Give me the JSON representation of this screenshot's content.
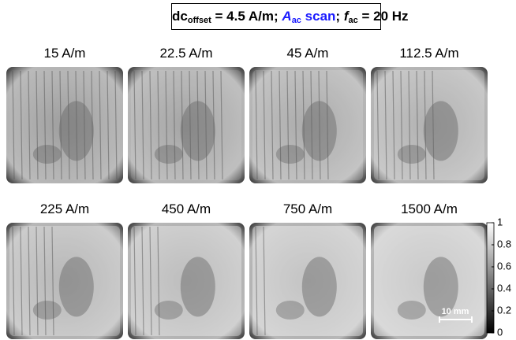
{
  "title": {
    "dc": "dc",
    "dc_sub": "offset",
    "dc_value": " = 4.5 A/m; ",
    "A": "A",
    "A_sub": "ac",
    "scan": " scan",
    "sep": "; ",
    "f": "f",
    "f_sub": "ac",
    "f_value": " = 20 Hz"
  },
  "panels": [
    "15 A/m",
    "22.5 A/m",
    "45 A/m",
    "112.5 A/m",
    "225 A/m",
    "450 A/m",
    "750 A/m",
    "1500 A/m"
  ],
  "colorbar": {
    "clim": [
      0,
      1
    ],
    "ticks": [
      1,
      0.8,
      0.6,
      0.4,
      0.2,
      0
    ]
  },
  "scale_bar": "10 mm"
}
